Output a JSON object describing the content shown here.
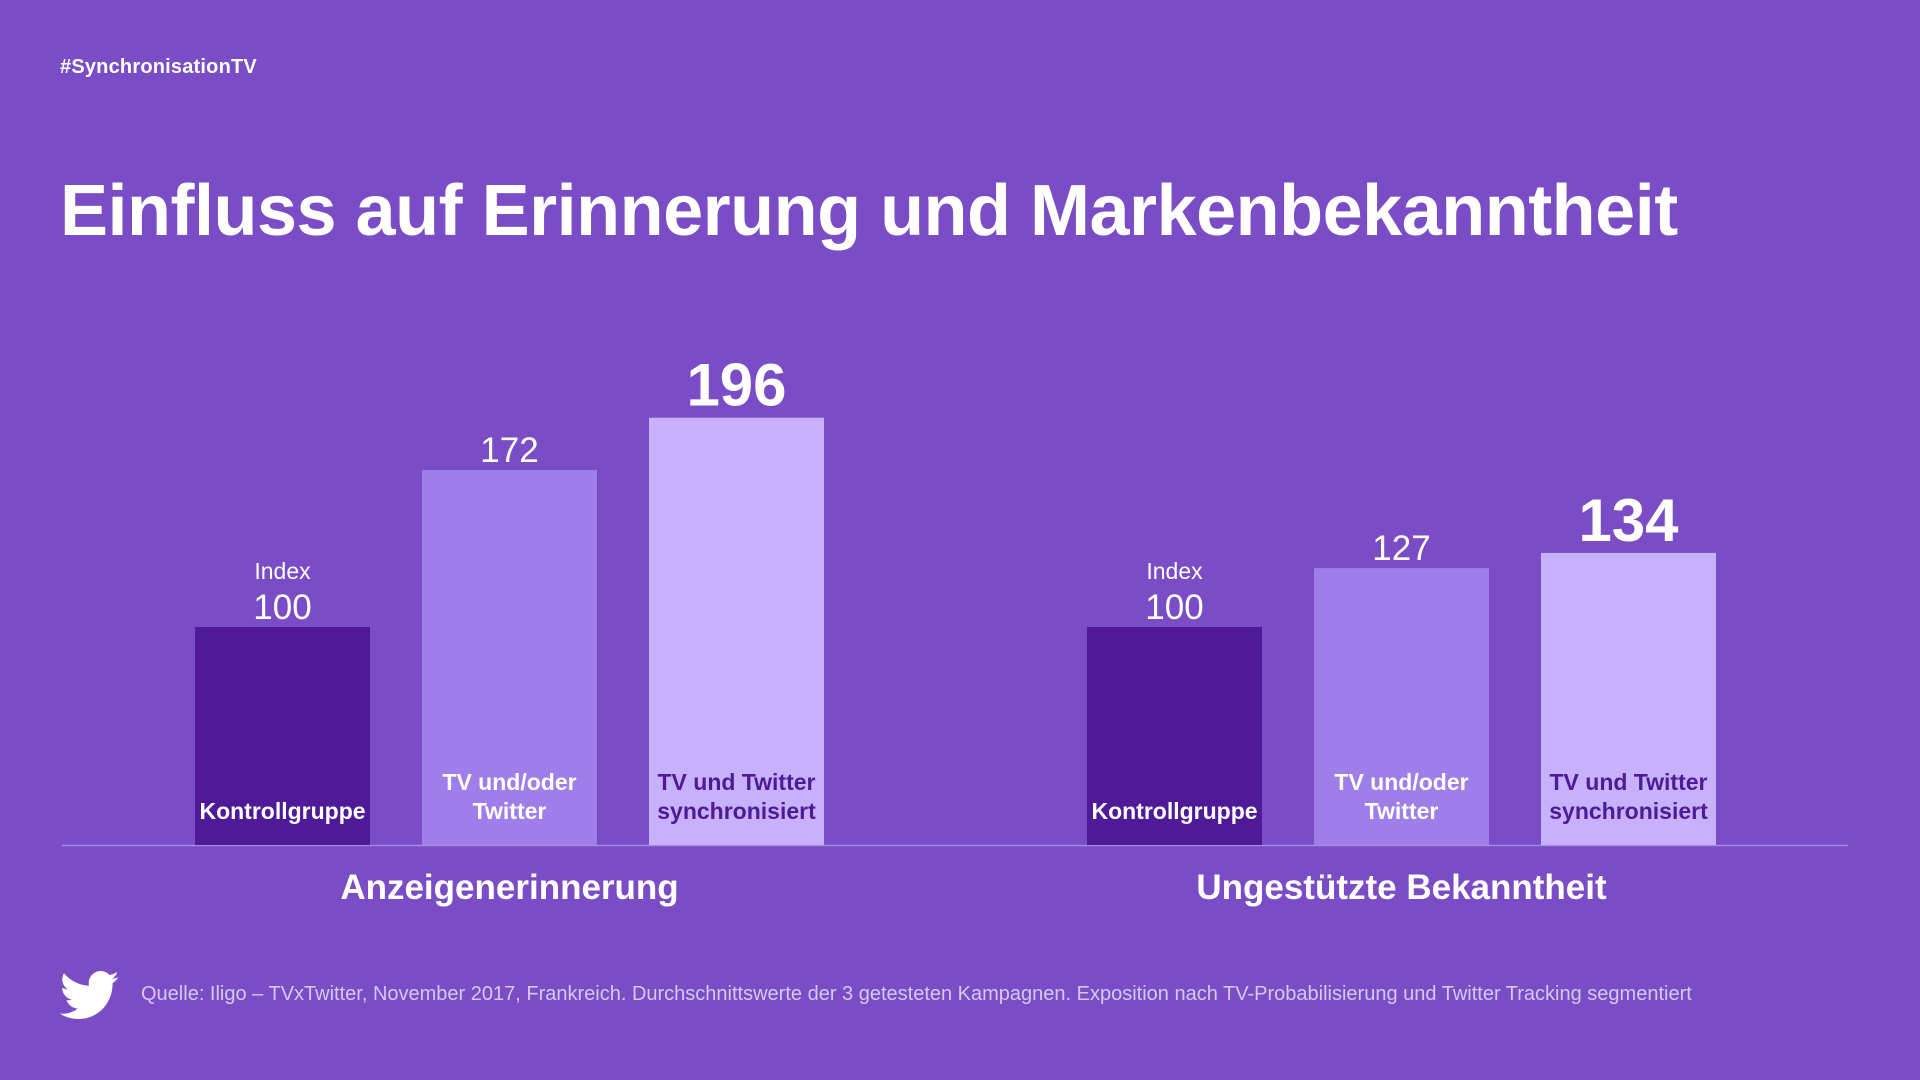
{
  "hashtag": "#SynchronisationTV",
  "title": "Einfluss auf Erinnerung und Markenbekanntheit",
  "source": "Quelle: Iligo – TVxTwitter, November 2017, Frankreich. Durchschnittswerte der 3 getesteten Kampagnen. Exposition nach TV-Probabilisierung und Twitter Tracking segmentiert",
  "logo": "twitter-bird-icon",
  "colors": {
    "background": "#7a4cc5",
    "kontrollgruppe": "#4f1a98",
    "tv_oder_twitter": "#a07eea",
    "tv_und_twitter_sync": "#c6b1fa",
    "axis": "#a58ae0"
  },
  "chart_data": [
    {
      "type": "bar",
      "title": "Anzeigenerinnerung",
      "categories": [
        "Kontrollgruppe",
        "TV und/oder Twitter",
        "TV und Twitter synchronisiert"
      ],
      "bar_labels": [
        [
          "Kontrollgruppe"
        ],
        [
          "TV und/oder",
          "Twitter"
        ],
        [
          "TV und Twitter",
          "synchronisiert"
        ]
      ],
      "values": [
        100,
        172,
        196
      ],
      "value_prefix": [
        "Index",
        "",
        ""
      ],
      "emphasis": [
        false,
        false,
        true
      ],
      "ylim": [
        0,
        210
      ]
    },
    {
      "type": "bar",
      "title": "Ungestützte Bekanntheit",
      "categories": [
        "Kontrollgruppe",
        "TV und/oder Twitter",
        "TV und Twitter synchronisiert"
      ],
      "bar_labels": [
        [
          "Kontrollgruppe"
        ],
        [
          "TV und/oder",
          "Twitter"
        ],
        [
          "TV und Twitter",
          "synchronisiert"
        ]
      ],
      "values": [
        100,
        127,
        134
      ],
      "value_prefix": [
        "Index",
        "",
        ""
      ],
      "emphasis": [
        false,
        false,
        true
      ],
      "ylim": [
        0,
        210
      ]
    }
  ]
}
